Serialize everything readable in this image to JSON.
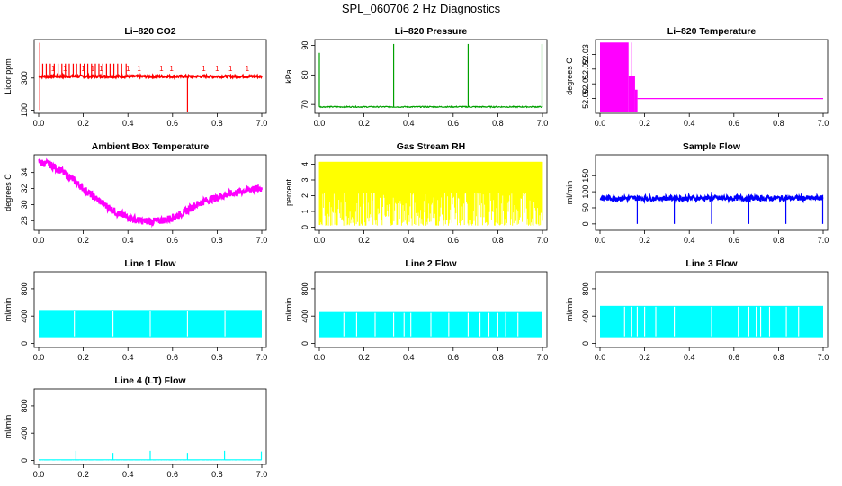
{
  "page_title": "SPL_060706  2 Hz Diagnostics",
  "chart_data": [
    {
      "id": "co2",
      "type": "line",
      "title": "Li–820 CO2",
      "ylabel": "Licor ppm",
      "xlim": [
        0.0,
        7.0
      ],
      "ylim": [
        80,
        540
      ],
      "xticks": [
        "0.0",
        "0.2",
        "0.4",
        "0.6",
        "0.8",
        "7.0"
      ],
      "yticks": [
        {
          "v": 100,
          "label": "100"
        },
        {
          "v": 300,
          "label": "300"
        }
      ],
      "color": "#ff0000",
      "baseline": 310,
      "noise": 7,
      "spikes": [
        {
          "x": 0.005,
          "y": 520,
          "low": 100
        },
        {
          "x": 0.018,
          "y": 390
        },
        {
          "x": 0.034,
          "y": 390
        },
        {
          "x": 0.052,
          "y": 390
        },
        {
          "x": 0.07,
          "y": 390
        },
        {
          "x": 0.087,
          "y": 390
        },
        {
          "x": 0.104,
          "y": 390
        },
        {
          "x": 0.12,
          "y": 390
        },
        {
          "x": 0.137,
          "y": 390
        },
        {
          "x": 0.155,
          "y": 390
        },
        {
          "x": 0.17,
          "y": 390
        },
        {
          "x": 0.187,
          "y": 390
        },
        {
          "x": 0.204,
          "y": 390
        },
        {
          "x": 0.22,
          "y": 390
        },
        {
          "x": 0.237,
          "y": 390
        },
        {
          "x": 0.254,
          "y": 390
        },
        {
          "x": 0.27,
          "y": 390
        },
        {
          "x": 0.287,
          "y": 390
        },
        {
          "x": 0.304,
          "y": 390
        },
        {
          "x": 0.32,
          "y": 390
        },
        {
          "x": 0.337,
          "y": 390
        },
        {
          "x": 0.354,
          "y": 390
        },
        {
          "x": 0.372,
          "y": 390
        },
        {
          "x": 0.392,
          "y": 390
        },
        {
          "x": 0.667,
          "y": 310,
          "low": 90
        }
      ],
      "markers": [
        {
          "x": 0.065,
          "y": 345,
          "label": "1"
        },
        {
          "x": 0.118,
          "y": 345,
          "label": "1"
        },
        {
          "x": 0.2,
          "y": 345,
          "label": "1"
        },
        {
          "x": 0.242,
          "y": 345,
          "label": "1"
        },
        {
          "x": 0.28,
          "y": 345,
          "label": "1"
        },
        {
          "x": 0.4,
          "y": 345,
          "label": "1"
        },
        {
          "x": 0.45,
          "y": 345,
          "label": "1"
        },
        {
          "x": 0.55,
          "y": 345,
          "label": "1"
        },
        {
          "x": 0.595,
          "y": 345,
          "label": "1"
        },
        {
          "x": 0.74,
          "y": 345,
          "label": "1"
        },
        {
          "x": 0.8,
          "y": 345,
          "label": "1"
        },
        {
          "x": 0.86,
          "y": 345,
          "label": "1"
        },
        {
          "x": 0.935,
          "y": 345,
          "label": "1"
        }
      ]
    },
    {
      "id": "pressure",
      "type": "line",
      "title": "Li–820 Pressure",
      "ylabel": "kPa",
      "xlim": [
        0.0,
        7.0
      ],
      "ylim": [
        67,
        92
      ],
      "xticks": [
        "0.0",
        "0.2",
        "0.4",
        "0.6",
        "0.8",
        "7.0"
      ],
      "yticks": [
        {
          "v": 70,
          "label": "70"
        },
        {
          "v": 80,
          "label": "80"
        },
        {
          "v": 90,
          "label": "90"
        }
      ],
      "color": "#00a000",
      "baseline": 69.2,
      "noise": 0.2,
      "spikes": [
        {
          "x": 0.0,
          "y": 87.5
        },
        {
          "x": 0.333,
          "y": 90.5
        },
        {
          "x": 0.667,
          "y": 90.5
        },
        {
          "x": 0.998,
          "y": 90.5
        }
      ]
    },
    {
      "id": "li_temp",
      "type": "area",
      "title": "Li–820 Temperature",
      "ylabel": "degrees C",
      "xlim": [
        0.0,
        7.0
      ],
      "ylim": [
        51.99,
        52.04
      ],
      "xticks": [
        "0.0",
        "0.2",
        "0.4",
        "0.6",
        "0.8",
        "7.0"
      ],
      "yticks": [
        {
          "v": 52.0,
          "label": "52.00"
        },
        {
          "v": 52.01,
          "label": "52.01"
        },
        {
          "v": 52.02,
          "label": "52.02"
        },
        {
          "v": 52.03,
          "label": "52.03"
        }
      ],
      "color": "#ff00ff",
      "blocks": [
        {
          "x0": 0.0,
          "x1": 0.128,
          "top": 52.038
        },
        {
          "x0": 0.128,
          "x1": 0.157,
          "top": 52.015
        },
        {
          "x0": 0.157,
          "x1": 0.168,
          "top": 52.006
        }
      ],
      "line_after": {
        "x": 0.168,
        "y": 52.0
      },
      "line_top": {
        "x": 0.142,
        "y": 52.038
      }
    },
    {
      "id": "ambient",
      "type": "line",
      "title": "Ambient Box Temperature",
      "ylabel": "degrees C",
      "xlim": [
        0.0,
        7.0
      ],
      "ylim": [
        26.8,
        36.2
      ],
      "xticks": [
        "0.0",
        "0.2",
        "0.4",
        "0.6",
        "0.8",
        "7.0"
      ],
      "yticks": [
        {
          "v": 28,
          "label": "28"
        },
        {
          "v": 30,
          "label": "30"
        },
        {
          "v": 32,
          "label": "32"
        },
        {
          "v": 34,
          "label": "34"
        }
      ],
      "color": "#ff00ff",
      "curve": [
        [
          0.0,
          35.3
        ],
        [
          0.05,
          35.0
        ],
        [
          0.1,
          34.2
        ],
        [
          0.15,
          33.2
        ],
        [
          0.2,
          32.0
        ],
        [
          0.25,
          30.9
        ],
        [
          0.3,
          29.9
        ],
        [
          0.35,
          29.0
        ],
        [
          0.4,
          28.4
        ],
        [
          0.45,
          28.0
        ],
        [
          0.5,
          27.9
        ],
        [
          0.55,
          28.0
        ],
        [
          0.6,
          28.4
        ],
        [
          0.65,
          29.0
        ],
        [
          0.7,
          29.9
        ],
        [
          0.75,
          30.5
        ],
        [
          0.8,
          30.9
        ],
        [
          0.85,
          31.3
        ],
        [
          0.9,
          31.6
        ],
        [
          0.95,
          31.9
        ],
        [
          1.0,
          32.0
        ]
      ],
      "band": 0.9
    },
    {
      "id": "rh",
      "type": "area",
      "title": "Gas Stream RH",
      "ylabel": "percent",
      "xlim": [
        0.0,
        7.0
      ],
      "ylim": [
        -0.2,
        4.6
      ],
      "xticks": [
        "0.0",
        "0.2",
        "0.4",
        "0.6",
        "0.8",
        "7.0"
      ],
      "yticks": [
        {
          "v": 0,
          "label": "0"
        },
        {
          "v": 1,
          "label": "1"
        },
        {
          "v": 2,
          "label": "2"
        },
        {
          "v": 3,
          "label": "3"
        },
        {
          "v": 4,
          "label": "4"
        }
      ],
      "color": "#ffff00",
      "top": 4.15,
      "bottom": 0.1
    },
    {
      "id": "sample_flow",
      "type": "line",
      "title": "Sample Flow",
      "ylabel": "ml/min",
      "xlim": [
        0.0,
        7.0
      ],
      "ylim": [
        -20,
        215
      ],
      "xticks": [
        "0.0",
        "0.2",
        "0.4",
        "0.6",
        "0.8",
        "7.0"
      ],
      "yticks": [
        {
          "v": 0,
          "label": "0"
        },
        {
          "v": 50,
          "label": "50"
        },
        {
          "v": 100,
          "label": "100"
        },
        {
          "v": 150,
          "label": "150"
        }
      ],
      "color": "#0000ff",
      "baseline": 80,
      "noise": 8,
      "spikes": [
        {
          "x": 0.167,
          "y": 90,
          "low": 0
        },
        {
          "x": 0.333,
          "y": 90,
          "low": 0
        },
        {
          "x": 0.5,
          "y": 100,
          "low": 0
        },
        {
          "x": 0.667,
          "y": 90,
          "low": 0
        },
        {
          "x": 0.833,
          "y": 90,
          "low": 0
        },
        {
          "x": 0.998,
          "y": 90,
          "low": 0
        }
      ]
    },
    {
      "id": "line1",
      "type": "area",
      "title": "Line 1 Flow",
      "ylabel": "ml/min",
      "xlim": [
        0.0,
        7.0
      ],
      "ylim": [
        -60,
        1050
      ],
      "xticks": [
        "0.0",
        "0.2",
        "0.4",
        "0.6",
        "0.8",
        "7.0"
      ],
      "yticks": [
        {
          "v": 0,
          "label": "0"
        },
        {
          "v": 400,
          "label": "400"
        },
        {
          "v": 800,
          "label": "800"
        }
      ],
      "color": "#00ffff",
      "top": 490,
      "bottom": 90,
      "gaps": [
        0.16,
        0.333,
        0.5,
        0.667,
        0.835
      ]
    },
    {
      "id": "line2",
      "type": "area",
      "title": "Line 2 Flow",
      "ylabel": "ml/min",
      "xlim": [
        0.0,
        7.0
      ],
      "ylim": [
        -60,
        1050
      ],
      "xticks": [
        "0.0",
        "0.2",
        "0.4",
        "0.6",
        "0.8",
        "7.0"
      ],
      "yticks": [
        {
          "v": 0,
          "label": "0"
        },
        {
          "v": 400,
          "label": "400"
        },
        {
          "v": 800,
          "label": "800"
        }
      ],
      "color": "#00ffff",
      "top": 460,
      "bottom": 90,
      "gaps": [
        0.11,
        0.167,
        0.25,
        0.333,
        0.38,
        0.41,
        0.5,
        0.58,
        0.667,
        0.72,
        0.76,
        0.8,
        0.835,
        0.89
      ]
    },
    {
      "id": "line3",
      "type": "area",
      "title": "Line 3 Flow",
      "ylabel": "ml/min",
      "xlim": [
        0.0,
        7.0
      ],
      "ylim": [
        -60,
        1050
      ],
      "xticks": [
        "0.0",
        "0.2",
        "0.4",
        "0.6",
        "0.8",
        "7.0"
      ],
      "yticks": [
        {
          "v": 0,
          "label": "0"
        },
        {
          "v": 400,
          "label": "400"
        },
        {
          "v": 800,
          "label": "800"
        }
      ],
      "color": "#00ffff",
      "top": 550,
      "bottom": 90,
      "gaps": [
        0.11,
        0.14,
        0.167,
        0.2,
        0.25,
        0.333,
        0.5,
        0.62,
        0.667,
        0.7,
        0.72,
        0.76,
        0.835,
        0.89
      ]
    },
    {
      "id": "line4",
      "type": "line",
      "title": "Line 4 (LT) Flow",
      "ylabel": "ml/min",
      "xlim": [
        0.0,
        7.0
      ],
      "ylim": [
        -60,
        1050
      ],
      "xticks": [
        "0.0",
        "0.2",
        "0.4",
        "0.6",
        "0.8",
        "7.0"
      ],
      "yticks": [
        {
          "v": 0,
          "label": "0"
        },
        {
          "v": 400,
          "label": "400"
        },
        {
          "v": 800,
          "label": "800"
        }
      ],
      "color": "#00ffff",
      "baseline": 8,
      "noise": 1,
      "spikes": [
        {
          "x": 0.167,
          "y": 140
        },
        {
          "x": 0.333,
          "y": 110
        },
        {
          "x": 0.5,
          "y": 140
        },
        {
          "x": 0.667,
          "y": 110
        },
        {
          "x": 0.833,
          "y": 140
        },
        {
          "x": 0.998,
          "y": 130
        }
      ]
    }
  ]
}
